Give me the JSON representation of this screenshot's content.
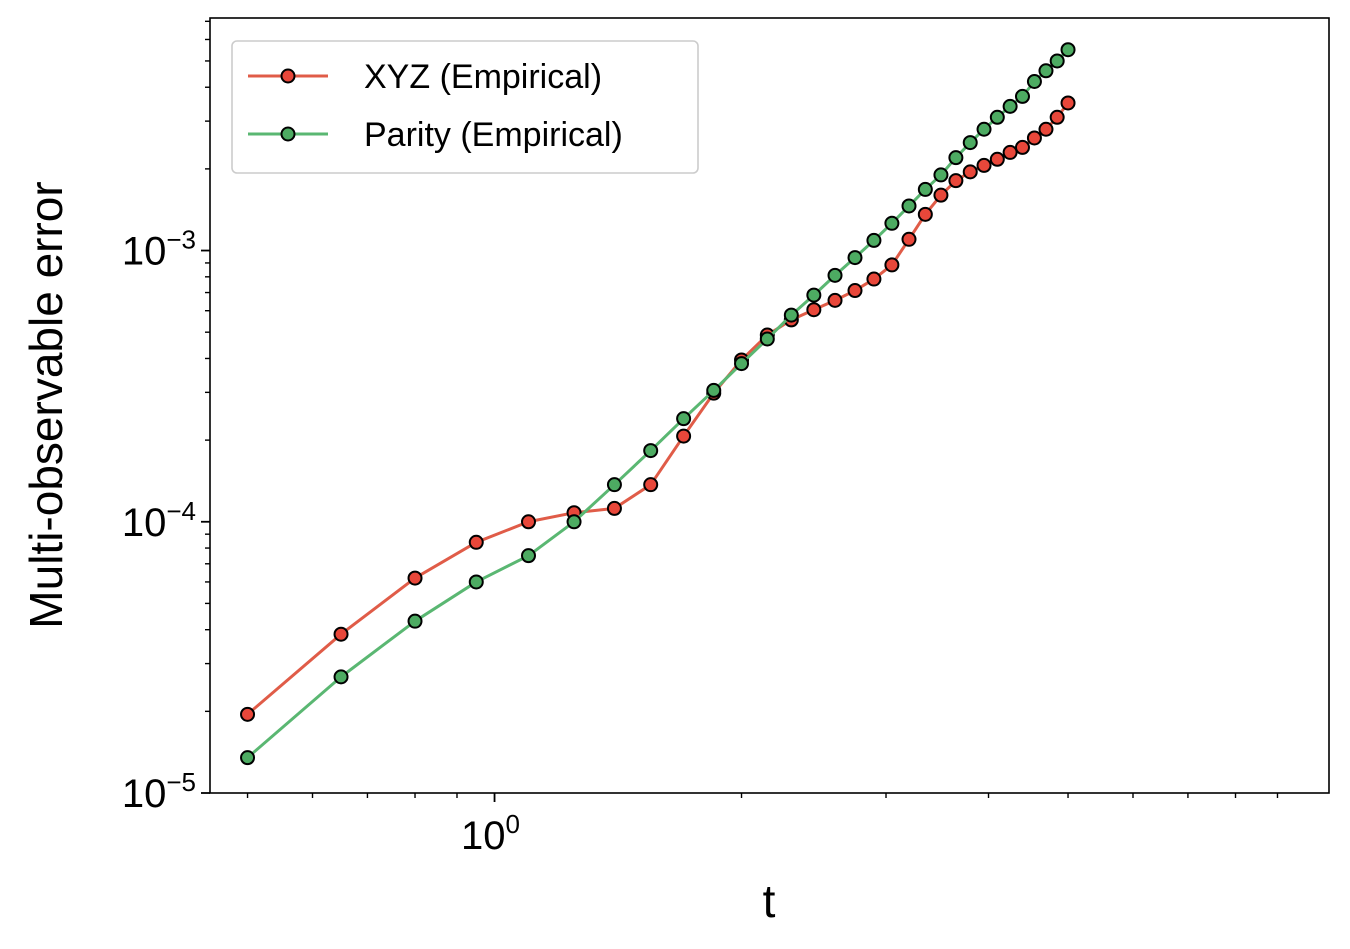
{
  "chart_data": {
    "type": "line",
    "xscale": "log",
    "yscale": "log",
    "xlabel": "t",
    "ylabel": "Multi-observable error",
    "xlim": [
      0.45,
      10.4
    ],
    "ylim": [
      1e-05,
      0.0072
    ],
    "x_major_ticks": [
      {
        "value": 1,
        "base": "10",
        "exp": "0"
      }
    ],
    "x_minor_ticks": [
      0.5,
      0.6,
      0.7,
      0.8,
      0.9,
      2,
      3,
      4,
      5,
      6,
      7,
      8,
      9
    ],
    "y_major_ticks": [
      {
        "value": 1e-05,
        "base": "10",
        "exp": "−5"
      },
      {
        "value": 0.0001,
        "base": "10",
        "exp": "−4"
      },
      {
        "value": 0.001,
        "base": "10",
        "exp": "−3"
      }
    ],
    "y_minor_ticks": [
      2e-05,
      3e-05,
      4e-05,
      5e-05,
      6e-05,
      7e-05,
      8e-05,
      9e-05,
      0.0002,
      0.0003,
      0.0004,
      0.0005,
      0.0006,
      0.0007,
      0.0008,
      0.0009,
      0.002,
      0.003,
      0.004,
      0.005,
      0.006,
      0.007
    ],
    "grid": false,
    "legend_position": "top-left",
    "x": [
      0.5,
      0.65,
      0.8,
      0.95,
      1.1,
      1.25,
      1.4,
      1.55,
      1.7,
      1.85,
      2.0,
      2.15,
      2.3,
      2.45,
      2.6,
      2.75,
      2.9,
      3.05,
      3.2,
      3.35,
      3.5,
      3.65,
      3.8,
      3.95,
      4.1,
      4.25,
      4.4,
      4.55,
      4.7,
      4.85,
      5.0
    ],
    "series": [
      {
        "name": "XYZ (Empirical)",
        "color": "#e05c48",
        "marker_fill": "#e8473a",
        "y": [
          1.95e-05,
          3.85e-05,
          6.2e-05,
          8.4e-05,
          0.0001,
          0.000108,
          0.000112,
          0.000137,
          0.000207,
          0.000298,
          0.000395,
          0.000488,
          0.000555,
          0.000605,
          0.000655,
          0.000712,
          0.000785,
          0.000885,
          0.0011,
          0.00136,
          0.0016,
          0.00181,
          0.00195,
          0.00206,
          0.00217,
          0.0023,
          0.0024,
          0.0026,
          0.0028,
          0.0031,
          0.0035
        ]
      },
      {
        "name": "Parity (Empirical)",
        "color": "#5ab772",
        "marker_fill": "#4dab62",
        "y": [
          1.35e-05,
          2.68e-05,
          4.3e-05,
          6e-05,
          7.5e-05,
          0.0001,
          0.000137,
          0.000183,
          0.00024,
          0.000305,
          0.000383,
          0.000472,
          0.000578,
          0.000685,
          0.00081,
          0.000942,
          0.00109,
          0.00126,
          0.00146,
          0.00168,
          0.0019,
          0.0022,
          0.0025,
          0.0028,
          0.0031,
          0.0034,
          0.0037,
          0.0042,
          0.0046,
          0.005,
          0.0055
        ]
      }
    ]
  }
}
